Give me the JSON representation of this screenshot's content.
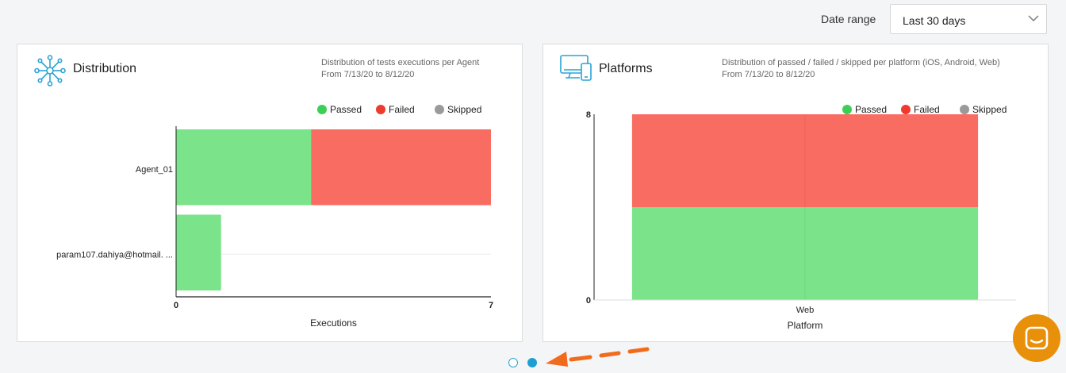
{
  "header": {
    "date_range_label": "Date range",
    "date_range_value": "Last 30 days"
  },
  "distribution": {
    "title": "Distribution",
    "desc_line1": "Distribution of tests executions per Agent",
    "desc_line2": "From 7/13/20 to 8/12/20",
    "icon": "network-hub-icon"
  },
  "platforms": {
    "title": "Platforms",
    "desc_line1": "Distribution of passed / failed / skipped per platform (iOS, Android, Web)",
    "desc_line2": "From 7/13/20 to 8/12/20",
    "icon": "devices-icon"
  },
  "colors": {
    "passed": "#7be38a",
    "failed": "#f86c62",
    "skipped": "#a8a8a8",
    "legend_passed": "#3ccf55",
    "legend_failed": "#ef3a2e",
    "legend_skipped": "#9a9a9a",
    "accent": "#1e9fd4",
    "chat": "#e8900a"
  },
  "chart_data": [
    {
      "type": "bar",
      "orientation": "horizontal",
      "stacked": true,
      "categories": [
        "Agent_01",
        "param107.dahiya@hotmail. ..."
      ],
      "series": [
        {
          "name": "Passed",
          "values": [
            3,
            1
          ]
        },
        {
          "name": "Failed",
          "values": [
            4,
            0
          ]
        },
        {
          "name": "Skipped",
          "values": [
            0,
            0
          ]
        }
      ],
      "xlabel": "Executions",
      "xlim": [
        0,
        7
      ],
      "xticks": [
        "0",
        "7"
      ],
      "legend": "top-right"
    },
    {
      "type": "bar",
      "stacked": true,
      "categories": [
        "Web"
      ],
      "series": [
        {
          "name": "Passed",
          "values": [
            4
          ]
        },
        {
          "name": "Failed",
          "values": [
            4
          ]
        },
        {
          "name": "Skipped",
          "values": [
            0
          ]
        }
      ],
      "xlabel": "Platform",
      "ylim": [
        0,
        8
      ],
      "yticks": [
        "0",
        "8"
      ],
      "legend": "top-right"
    }
  ],
  "carousel": {
    "pages": 2,
    "active": 2
  }
}
